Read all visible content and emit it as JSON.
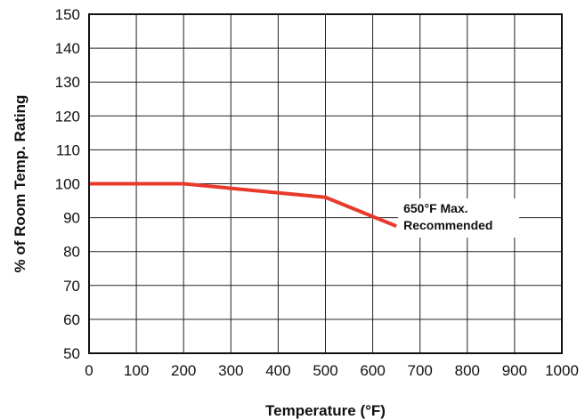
{
  "chart_data": {
    "type": "line",
    "xlabel": "Temperature (°F)",
    "ylabel": "% of Room Temp. Rating",
    "xlim": [
      0,
      1000
    ],
    "ylim": [
      50,
      150
    ],
    "x_ticks": [
      0,
      100,
      200,
      300,
      400,
      500,
      600,
      700,
      800,
      900,
      1000
    ],
    "y_ticks": [
      50,
      60,
      70,
      80,
      90,
      100,
      110,
      120,
      130,
      140,
      150
    ],
    "grid": true,
    "series": [
      {
        "color": "#e8392b",
        "points": [
          {
            "x": 0,
            "y": 100
          },
          {
            "x": 200,
            "y": 100
          },
          {
            "x": 500,
            "y": 96
          },
          {
            "x": 650,
            "y": 87.5
          }
        ]
      }
    ],
    "annotations": [
      {
        "line1": "650°F Max.",
        "line2": "Recommended",
        "x": 665,
        "y": 92
      }
    ]
  },
  "colors": {
    "line": "#e8392b",
    "grid": "#222222",
    "frame": "#111111"
  }
}
